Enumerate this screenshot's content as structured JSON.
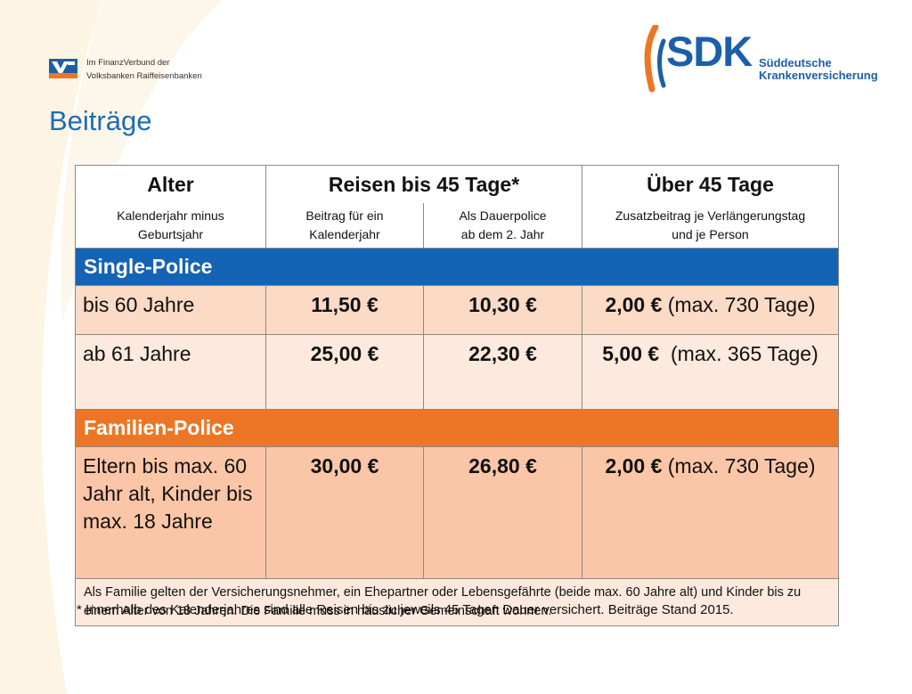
{
  "brand": {
    "vr_line1": "Im FinanzVerbund der",
    "vr_line2": "Volksbanken Raiffeisenbanken",
    "sdk_word": "SDK",
    "sdk_sub1": "Süddeutsche",
    "sdk_sub2": "Krankenversicherung",
    "color_blue": "#1c5fa8",
    "color_orange": "#ec7626"
  },
  "title": "Beiträge",
  "table": {
    "headers": {
      "age": "Alter",
      "trips": "Reisen bis 45 Tage*",
      "over": "Über 45 Tage"
    },
    "subheaders": {
      "age_1": "Kalenderjahr minus",
      "age_2": "Geburtsjahr",
      "year_1": "Beitrag für ein",
      "year_2": "Kalenderjahr",
      "perm_1": "Als Dauerpolice",
      "perm_2": "ab dem 2. Jahr",
      "extra_1": "Zusatzbeitrag je Verlängerungstag",
      "extra_2": "und je Person"
    },
    "single": {
      "label": "Single-Police",
      "rows": [
        {
          "age": "bis 60 Jahre",
          "year": "11,50 €",
          "perm": "10,30 €",
          "extra_amount": "2,00 €",
          "extra_note": "(max. 730 Tage)"
        },
        {
          "age": "ab 61 Jahre",
          "year": "25,00 €",
          "perm": "22,30 €",
          "extra_amount": "5,00 €",
          "extra_note": "(max. 365 Tage)"
        }
      ]
    },
    "family": {
      "label": "Familien-Police",
      "rows": [
        {
          "age": "Eltern bis max. 60 Jahr alt, Kinder bis max. 18 Jahre",
          "year": "30,00 €",
          "perm": "26,80 €",
          "extra_amount": "2,00 €",
          "extra_note": "(max. 730 Tage)"
        }
      ],
      "note": "Als Familie gelten der Versicherungsnehmer, ein Ehepartner oder Lebensgefährte (beide max. 60 Jahre alt) und Kinder bis zu einem Alter von 18 Jahren. Die Familie muss in häuslicher Gemeinschaft wohnen."
    }
  },
  "footnote": "* Innerhalb des Kalenderjahres sind alle Reisen bis zu jeweils 45 Tagen Dauer versichert. Beiträge Stand 2015."
}
